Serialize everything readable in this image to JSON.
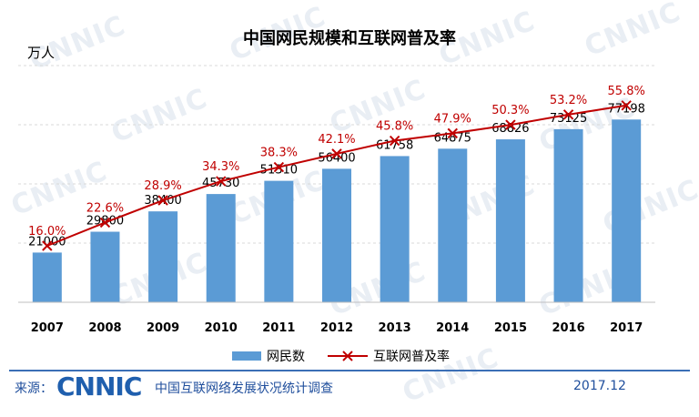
{
  "chart_data": {
    "type": "bar",
    "title": "中国网民规模和互联网普及率",
    "ylabel": "万人",
    "categories": [
      "2007",
      "2008",
      "2009",
      "2010",
      "2011",
      "2012",
      "2013",
      "2014",
      "2015",
      "2016",
      "2017"
    ],
    "series": [
      {
        "name": "网民数",
        "type": "bar",
        "color": "#5b9bd5",
        "values": [
          21000,
          29800,
          38400,
          45730,
          51310,
          56400,
          61758,
          64875,
          68826,
          73125,
          77198
        ]
      },
      {
        "name": "互联网普及率",
        "type": "line",
        "color": "#c00000",
        "values": [
          16.0,
          22.6,
          28.9,
          34.3,
          38.3,
          42.1,
          45.8,
          47.9,
          50.3,
          53.2,
          55.8
        ],
        "labels": [
          "16.0%",
          "22.6%",
          "28.9%",
          "34.3%",
          "38.3%",
          "42.1%",
          "45.8%",
          "47.9%",
          "50.3%",
          "53.2%",
          "55.8%"
        ]
      }
    ],
    "ylim": [
      0,
      100000
    ],
    "y2lim": [
      0,
      80
    ],
    "grid": true,
    "legend_position": "bottom"
  },
  "footer": {
    "source_label": "来源：",
    "logo": "CNNIC",
    "survey": "中国互联网络发展状况统计调查",
    "date": "2017.12"
  },
  "watermark_text": "CNNIC",
  "colors": {
    "bar": "#5b9bd5",
    "line": "#c00000",
    "accent": "#1f4e9c"
  }
}
